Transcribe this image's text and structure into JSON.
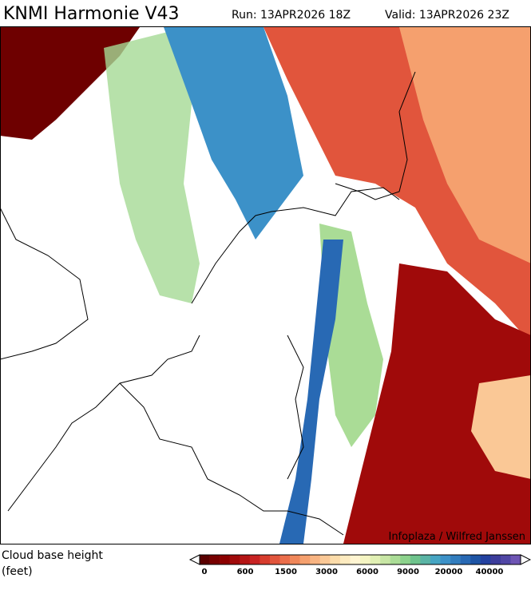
{
  "header": {
    "title": "KNMI Harmonie V43",
    "run": "Run: 13APR2026 18Z",
    "valid": "Valid: 13APR2026 23Z"
  },
  "map": {
    "credit": "Infoplaza / Wilfred Janssen"
  },
  "legend": {
    "title_line1": "Cloud base height",
    "title_line2": "(feet)",
    "ticks": [
      0,
      600,
      1500,
      3000,
      6000,
      9000,
      20000,
      40000
    ],
    "colors": [
      "#5a0000",
      "#780000",
      "#8c0000",
      "#a00a0a",
      "#b41414",
      "#c82323",
      "#d73c2d",
      "#e1553c",
      "#eb6e4b",
      "#f0875a",
      "#f5a06e",
      "#f8b482",
      "#fac896",
      "#fcdcaa",
      "#fdebc0",
      "#fff5d2",
      "#f5f5c3",
      "#e1f0b4",
      "#c8e6a5",
      "#aadc96",
      "#8cd28c",
      "#6ec38c",
      "#5ab4a5",
      "#46a5c3",
      "#3c91c8",
      "#327dbe",
      "#2869b4",
      "#1e55a5",
      "#2341a0",
      "#3c3c9b",
      "#5046a5",
      "#6e55b4"
    ]
  }
}
